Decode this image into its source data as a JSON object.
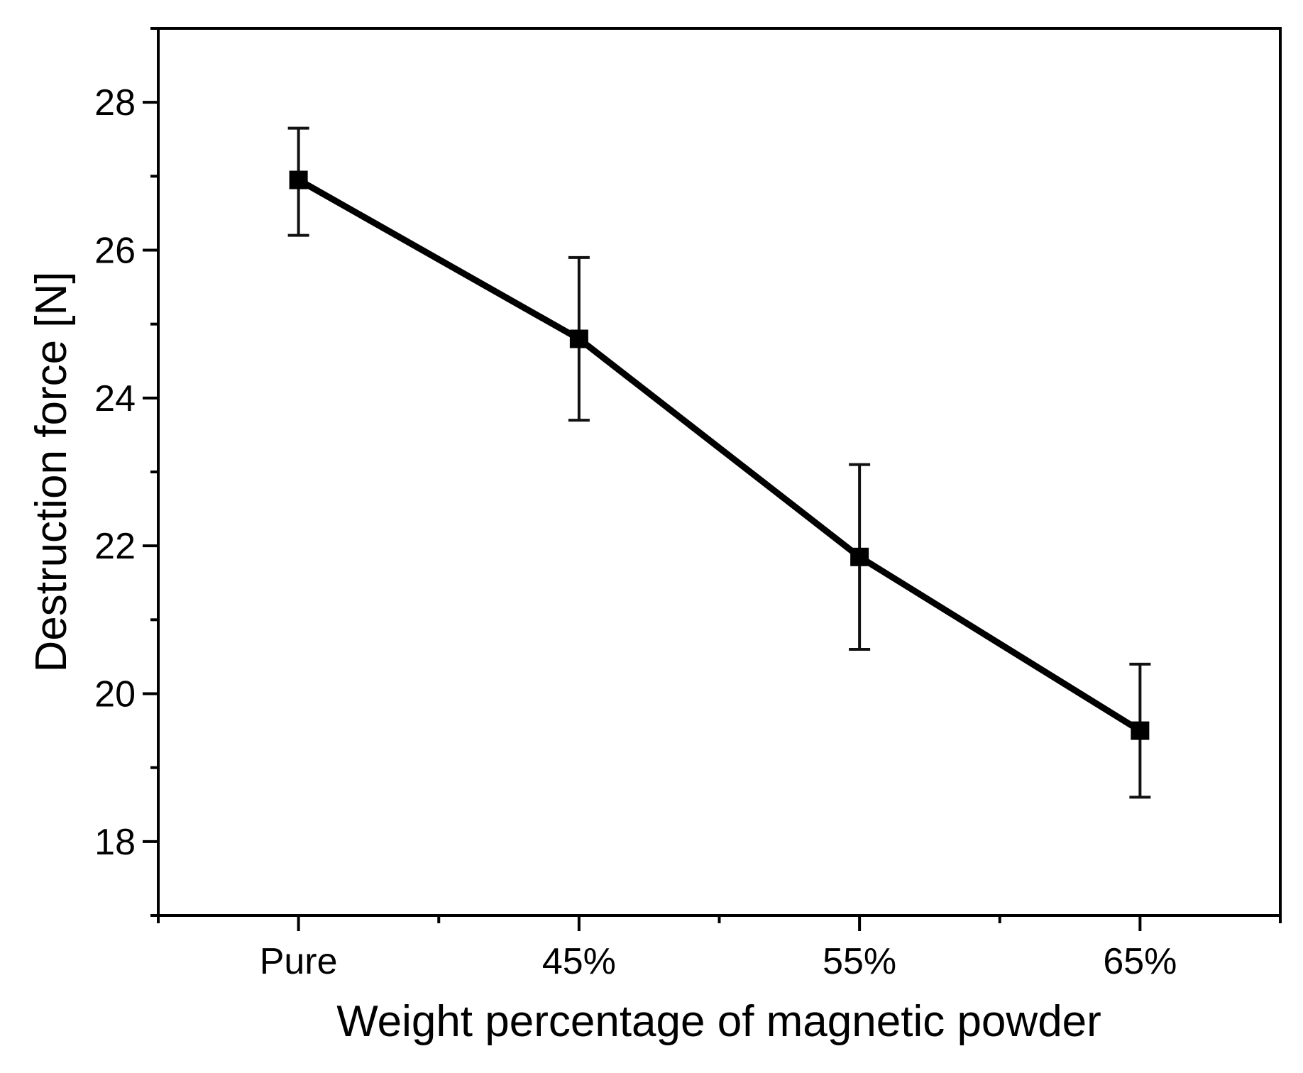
{
  "chart_data": {
    "type": "line",
    "title": "",
    "xlabel": "Weight percentage of magnetic powder",
    "ylabel": "Destruction force [N]",
    "categories": [
      "Pure",
      "45%",
      "55%",
      "65%"
    ],
    "series": [
      {
        "name": "Destruction force",
        "values": [
          26.95,
          24.8,
          21.85,
          19.5
        ],
        "error_low": [
          26.2,
          23.7,
          20.6,
          18.6
        ],
        "error_high": [
          27.65,
          25.9,
          23.1,
          20.4
        ],
        "marker": "square",
        "color": "#000000"
      }
    ],
    "ylim": [
      17,
      29
    ],
    "xlim": [
      0.5,
      4.5
    ],
    "yticks": [
      18,
      20,
      22,
      24,
      26,
      28
    ],
    "yticks_minor": [
      17,
      19,
      21,
      23,
      25,
      27,
      29
    ],
    "ytick_labels": [
      "18",
      "20",
      "22",
      "24",
      "26",
      "28"
    ],
    "grid": false,
    "legend": "none"
  }
}
